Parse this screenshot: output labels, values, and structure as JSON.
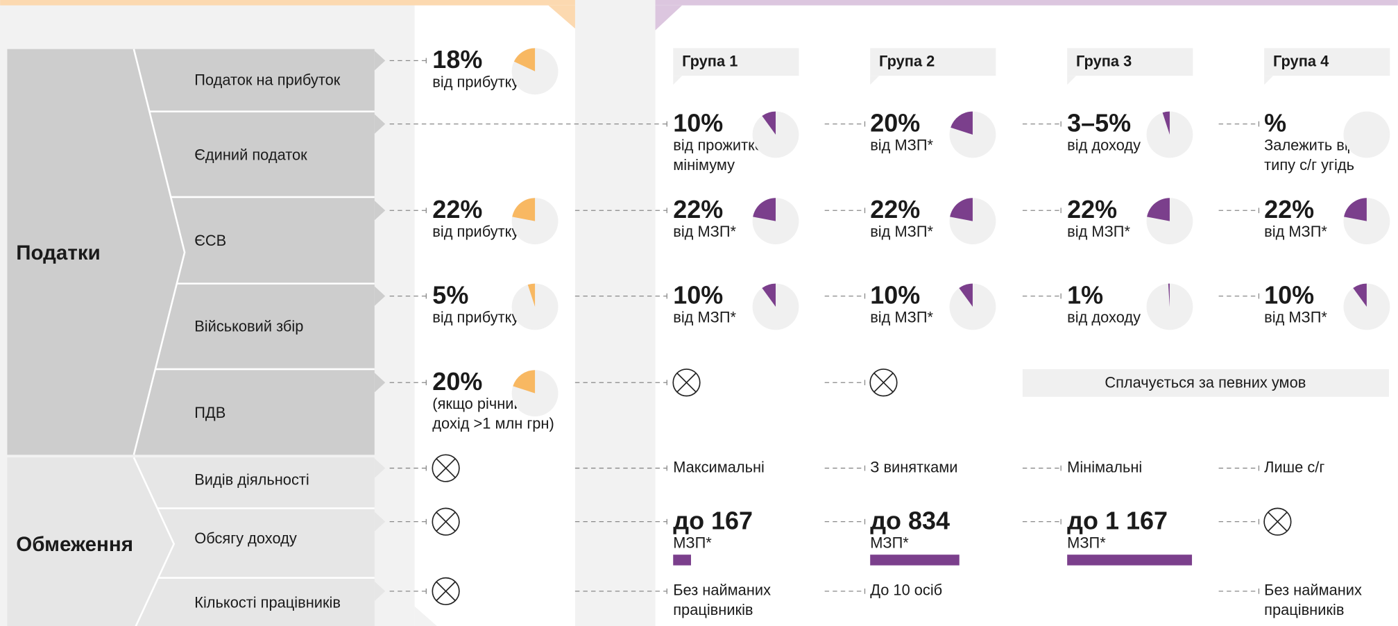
{
  "sections": [
    {
      "label": "Податки",
      "rows": [
        "Податок на прибуток",
        "Єдиний податок",
        "ЄСВ",
        "Військовий збір",
        "ПДВ"
      ]
    },
    {
      "label": "Обмеження",
      "rows": [
        "Видів діяльності",
        "Обсягу доходу",
        "Кількості працівників"
      ]
    }
  ],
  "columns": [
    {
      "color": "#f8b862"
    },
    {
      "header": "Група 1",
      "color": "#7b3f8c"
    },
    {
      "header": "Група 2",
      "color": "#7b3f8c"
    },
    {
      "header": "Група 3",
      "color": "#7b3f8c"
    },
    {
      "header": "Група 4",
      "color": "#7b3f8c"
    }
  ],
  "grid": [
    [
      {
        "type": "pie",
        "value": 18,
        "label": "18%",
        "note": [
          "від прибутку"
        ]
      },
      null,
      null,
      null,
      null
    ],
    [
      null,
      {
        "type": "pie",
        "value": 10,
        "label": "10%",
        "note": [
          "від прожиткового",
          "мінімуму"
        ]
      },
      {
        "type": "pie",
        "value": 20,
        "label": "20%",
        "note": [
          "від МЗП*"
        ]
      },
      {
        "type": "pie",
        "values": [
          3,
          5
        ],
        "label": "3–5%",
        "note": [
          "від доходу"
        ]
      },
      {
        "type": "pie",
        "value": null,
        "label": "%",
        "note": [
          "Залежить від",
          "типу с/г угідь"
        ]
      }
    ],
    [
      {
        "type": "pie",
        "value": 22,
        "label": "22%",
        "note": [
          "від прибутку"
        ]
      },
      {
        "type": "pie",
        "value": 22,
        "label": "22%",
        "note": [
          "від МЗП*"
        ]
      },
      {
        "type": "pie",
        "value": 22,
        "label": "22%",
        "note": [
          "від МЗП*"
        ]
      },
      {
        "type": "pie",
        "value": 22,
        "label": "22%",
        "note": [
          "від МЗП*"
        ]
      },
      {
        "type": "pie",
        "value": 22,
        "label": "22%",
        "note": [
          "від МЗП*"
        ]
      }
    ],
    [
      {
        "type": "pie",
        "value": 5,
        "label": "5%",
        "note": [
          "від прибутку"
        ]
      },
      {
        "type": "pie",
        "value": 10,
        "label": "10%",
        "note": [
          "від МЗП*"
        ]
      },
      {
        "type": "pie",
        "value": 10,
        "label": "10%",
        "note": [
          "від МЗП*"
        ]
      },
      {
        "type": "pie",
        "value": 1,
        "label": "1%",
        "note": [
          "від доходу"
        ]
      },
      {
        "type": "pie",
        "value": 10,
        "label": "10%",
        "note": [
          "від МЗП*"
        ]
      }
    ],
    [
      {
        "type": "pie",
        "value": 20,
        "label": "20%",
        "note": [
          "(якщо річний",
          "дохід >1 млн грн)"
        ]
      },
      {
        "type": "cross"
      },
      {
        "type": "cross"
      },
      {
        "type": "span",
        "text": "Сплачується за певних умов",
        "span": 2
      },
      null
    ],
    [
      {
        "type": "cross"
      },
      {
        "type": "text",
        "note": [
          "Максимальні"
        ]
      },
      {
        "type": "text",
        "note": [
          "З винятками"
        ]
      },
      {
        "type": "text",
        "note": [
          "Мінімальні"
        ]
      },
      {
        "type": "text",
        "note": [
          "Лише с/г"
        ]
      }
    ],
    [
      {
        "type": "cross"
      },
      {
        "type": "bar",
        "value": 167,
        "label": "до 167",
        "note": [
          "МЗП*"
        ]
      },
      {
        "type": "bar",
        "value": 834,
        "label": "до 834",
        "note": [
          "МЗП*"
        ]
      },
      {
        "type": "bar",
        "value": 1167,
        "label": "до 1 167",
        "note": [
          "МЗП*"
        ]
      },
      {
        "type": "cross"
      }
    ],
    [
      {
        "type": "cross"
      },
      {
        "type": "text",
        "note": [
          "Без найманих",
          "працівників"
        ]
      },
      {
        "type": "text",
        "note": [
          "До 10 осіб"
        ]
      },
      null,
      {
        "type": "text",
        "note": [
          "Без найманих",
          "працівників"
        ]
      }
    ]
  ]
}
